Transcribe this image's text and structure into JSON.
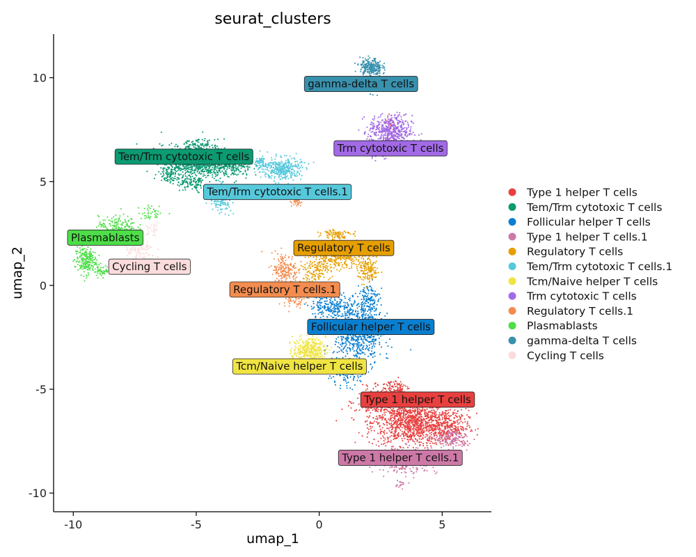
{
  "chart_data": {
    "type": "scatter",
    "title": "seurat_clusters",
    "xlabel": "umap_1",
    "ylabel": "umap_2",
    "xlim": [
      -10.8,
      7.0
    ],
    "ylim": [
      -10.9,
      12.1
    ],
    "xticks": [
      -10,
      -5,
      0,
      5
    ],
    "xtick_labels": [
      "-10",
      "-5",
      "0",
      "5"
    ],
    "yticks": [
      -10,
      -5,
      0,
      5,
      10
    ],
    "ytick_labels": [
      "-10",
      "-5",
      "0",
      "5",
      "10"
    ],
    "grid": false,
    "legend_placement": "right",
    "series": [
      {
        "name": "Type 1 helper T cells",
        "color": "#E8403F",
        "label": "Type 1 helper T cells",
        "label_pos": [
          4.0,
          -5.5
        ],
        "blobs": [
          [
            3.8,
            -6.6,
            1.5,
            1.0,
            1100
          ],
          [
            2.5,
            -5.6,
            0.9,
            0.6,
            300
          ],
          [
            5.2,
            -6.8,
            0.8,
            0.7,
            250
          ],
          [
            3.1,
            -4.9,
            0.5,
            0.4,
            80
          ],
          [
            2.9,
            7.6,
            0.2,
            0.7,
            25
          ]
        ]
      },
      {
        "name": "Tem/Trm cytotoxic T cells",
        "color": "#0B9A72",
        "label": "Tem/Trm cytotoxic T cells",
        "label_pos": [
          -5.5,
          6.2
        ],
        "blobs": [
          [
            -5.0,
            6.0,
            1.3,
            0.7,
            900
          ],
          [
            -3.6,
            5.7,
            0.8,
            0.5,
            200
          ],
          [
            -5.2,
            4.9,
            0.6,
            0.4,
            100
          ],
          [
            -6.1,
            5.4,
            0.4,
            0.4,
            80
          ],
          [
            -4.9,
            6.8,
            0.6,
            0.2,
            60
          ]
        ]
      },
      {
        "name": "Follicular helper T cells",
        "color": "#0A7FD0",
        "label": "Follicular helper T cells",
        "label_pos": [
          2.1,
          -2.0
        ],
        "blobs": [
          [
            1.6,
            -2.4,
            0.9,
            1.4,
            600
          ],
          [
            0.6,
            -1.0,
            0.9,
            0.6,
            250
          ],
          [
            2.0,
            -0.8,
            0.4,
            0.9,
            150
          ],
          [
            1.0,
            -4.3,
            0.6,
            0.5,
            100
          ]
        ]
      },
      {
        "name": "Type 1 helper T cells.1",
        "color": "#CC79A7",
        "label": "Type 1 helper T cells.1",
        "label_pos": [
          3.3,
          -8.3
        ],
        "blobs": [
          [
            3.6,
            -8.4,
            1.1,
            0.6,
            280
          ],
          [
            5.4,
            -7.4,
            0.6,
            0.4,
            160
          ],
          [
            3.3,
            -9.6,
            0.2,
            0.2,
            15
          ]
        ]
      },
      {
        "name": "Regulatory T cells",
        "color": "#E69F00",
        "label": "Regulatory T cells",
        "label_pos": [
          1.0,
          1.8
        ],
        "blobs": [
          [
            0.8,
            1.5,
            1.0,
            0.6,
            450
          ],
          [
            2.0,
            0.7,
            0.4,
            0.5,
            150
          ],
          [
            -0.2,
            0.7,
            0.6,
            0.5,
            120
          ],
          [
            0.7,
            2.5,
            0.5,
            0.2,
            80
          ]
        ]
      },
      {
        "name": "Tem/Trm cytotoxic T cells.1",
        "color": "#56C8DC",
        "label": "Tem/Trm cytotoxic T cells.1",
        "label_pos": [
          -1.7,
          4.5
        ],
        "blobs": [
          [
            -1.5,
            5.6,
            0.7,
            0.5,
            350
          ],
          [
            -4.0,
            4.2,
            0.4,
            0.6,
            150
          ],
          [
            -2.4,
            5.9,
            0.3,
            0.3,
            60
          ]
        ]
      },
      {
        "name": "Tcm/Naive helper T cells",
        "color": "#F0E442",
        "label": "Tcm/Naive helper T cells",
        "label_pos": [
          -0.8,
          -3.9
        ],
        "blobs": [
          [
            -0.4,
            -3.1,
            0.6,
            0.5,
            330
          ],
          [
            -0.9,
            -3.8,
            0.4,
            0.3,
            80
          ]
        ]
      },
      {
        "name": "Trm cytotoxic T cells",
        "color": "#A26AE6",
        "label": "Trm cytotoxic T cells",
        "label_pos": [
          2.9,
          6.6
        ],
        "blobs": [
          [
            2.9,
            7.4,
            0.8,
            0.7,
            500
          ],
          [
            2.4,
            6.4,
            0.4,
            0.3,
            60
          ]
        ]
      },
      {
        "name": "Regulatory T cells.1",
        "color": "#F38C4E",
        "label": "Regulatory T cells.1",
        "label_pos": [
          -1.4,
          -0.2
        ],
        "blobs": [
          [
            -1.4,
            0.7,
            0.5,
            0.8,
            200
          ],
          [
            -1.0,
            -0.6,
            0.4,
            0.4,
            80
          ],
          [
            -0.9,
            4.0,
            0.2,
            0.2,
            30
          ]
        ]
      },
      {
        "name": "Plasmablasts",
        "color": "#4DDE48",
        "label": "Plasmablasts",
        "label_pos": [
          -8.7,
          2.3
        ],
        "blobs": [
          [
            -9.5,
            1.2,
            0.4,
            0.6,
            220
          ],
          [
            -8.2,
            2.9,
            0.7,
            0.4,
            140
          ],
          [
            -8.8,
            0.7,
            0.3,
            0.2,
            50
          ],
          [
            -6.8,
            3.5,
            0.5,
            0.3,
            40
          ]
        ]
      },
      {
        "name": "gamma-delta T cells",
        "color": "#3891AD",
        "label": "gamma-delta T cells",
        "label_pos": [
          1.7,
          9.7
        ],
        "blobs": [
          [
            2.1,
            10.5,
            0.4,
            0.4,
            250
          ],
          [
            2.3,
            9.6,
            0.3,
            0.3,
            60
          ]
        ]
      },
      {
        "name": "Cycling T cells",
        "color": "#FBDCDC",
        "label": "Cycling T cells",
        "label_pos": [
          -6.9,
          0.9
        ],
        "blobs": [
          [
            -7.3,
            1.6,
            0.6,
            0.6,
            120
          ],
          [
            -6.8,
            2.7,
            0.3,
            0.3,
            30
          ]
        ]
      }
    ]
  }
}
